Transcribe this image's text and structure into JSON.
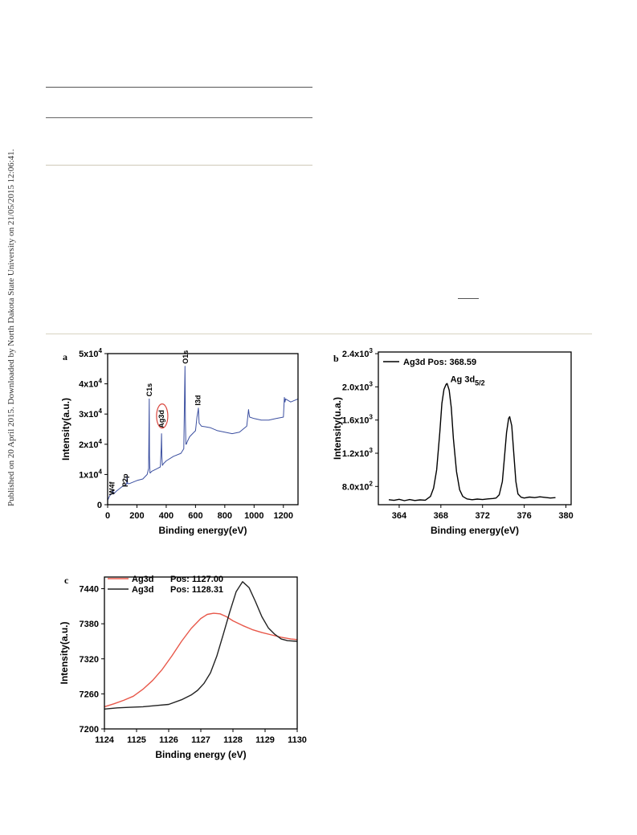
{
  "side_note": "Published on 20 April 2015. Downloaded by North Dakota State University on 21/05/2015 12:06:41.",
  "chart_data": [
    {
      "panel": "a",
      "type": "line",
      "xlabel": "Binding energy(eV)",
      "ylabel": "Intensity(a.u.)",
      "xlim": [
        0,
        1300
      ],
      "ylim": [
        0,
        50000
      ],
      "xticks": [
        0,
        200,
        400,
        600,
        800,
        1000,
        1200
      ],
      "xtick_labels": [
        "0",
        "200",
        "400",
        "600",
        "800",
        "1000",
        "1200"
      ],
      "yticks": [
        0,
        10000,
        20000,
        30000,
        40000,
        50000
      ],
      "ytick_labels": [
        {
          "base": "0",
          "exp": ""
        },
        {
          "base": "1x10",
          "exp": "4"
        },
        {
          "base": "2x10",
          "exp": "4"
        },
        {
          "base": "3x10",
          "exp": "4"
        },
        {
          "base": "4x10",
          "exp": "4"
        },
        {
          "base": "5x10",
          "exp": "4"
        }
      ],
      "series": [
        {
          "color": "#3b4fa0",
          "x": [
            0,
            15,
            30,
            35,
            40,
            60,
            100,
            130,
            133,
            136,
            150,
            200,
            240,
            270,
            280,
            284,
            286,
            289,
            292,
            300,
            340,
            360,
            366,
            368,
            370,
            374,
            380,
            400,
            450,
            500,
            520,
            528,
            531,
            534,
            537,
            545,
            560,
            580,
            600,
            610,
            617,
            620,
            625,
            640,
            700,
            750,
            800,
            850,
            900,
            950,
            962,
            966,
            970,
            1000,
            1050,
            1100,
            1150,
            1200,
            1207,
            1211,
            1215,
            1250,
            1300
          ],
          "y": [
            1500,
            3000,
            3800,
            5000,
            3500,
            4500,
            6000,
            6800,
            9500,
            7000,
            7000,
            8000,
            8500,
            10000,
            12000,
            35000,
            16000,
            10500,
            10500,
            11000,
            12000,
            12500,
            19000,
            23500,
            16000,
            13000,
            13500,
            14500,
            16000,
            17000,
            18500,
            45800,
            28000,
            20000,
            20000,
            21000,
            22500,
            23500,
            24500,
            29000,
            31000,
            32000,
            27000,
            26000,
            25500,
            24500,
            24000,
            23500,
            24000,
            26000,
            31500,
            30000,
            29000,
            28500,
            28000,
            28000,
            28500,
            29000,
            35500,
            34000,
            35000,
            34000,
            35000
          ]
        }
      ],
      "annotations": [
        "W4f",
        "P2p",
        "C1s",
        "Ag3d",
        "O1s",
        "I3d"
      ],
      "annotation_x": [
        30,
        120,
        285,
        367,
        531,
        617
      ]
    },
    {
      "panel": "b",
      "type": "line",
      "xlabel": "Binding energy(eV)",
      "ylabel": "Intensity(u.a.)",
      "xlim": [
        362,
        380.5
      ],
      "ylim": [
        580,
        2420
      ],
      "xticks": [
        364,
        368,
        372,
        376,
        380
      ],
      "xtick_labels": [
        "364",
        "368",
        "372",
        "376",
        "380"
      ],
      "yticks": [
        800,
        1200,
        1600,
        2000,
        2400
      ],
      "ytick_labels": [
        {
          "base": "8.0x10",
          "exp": "2"
        },
        {
          "base": "1.2x10",
          "exp": "3"
        },
        {
          "base": "1.6x10",
          "exp": "3"
        },
        {
          "base": "2.0x10",
          "exp": "3"
        },
        {
          "base": "2.4x10",
          "exp": "3"
        }
      ],
      "legend": "Ag3d Pos: 368.59",
      "peak_label": {
        "main": "Ag 3d",
        "sub": "5/2"
      },
      "series": [
        {
          "color": "#000000",
          "x": [
            363.0,
            363.5,
            364.0,
            364.5,
            365.0,
            365.5,
            366.0,
            366.5,
            367.0,
            367.3,
            367.6,
            367.9,
            368.1,
            368.3,
            368.5,
            368.6,
            368.8,
            369.0,
            369.2,
            369.5,
            369.8,
            370.1,
            370.5,
            371.0,
            371.5,
            372.0,
            372.5,
            373.0,
            373.3,
            373.6,
            373.9,
            374.1,
            374.3,
            374.5,
            374.6,
            374.8,
            375.0,
            375.2,
            375.4,
            375.7,
            376.0,
            376.5,
            377.0,
            377.5,
            378.0,
            378.5,
            379.0
          ],
          "y": [
            640,
            632,
            645,
            628,
            642,
            630,
            638,
            634,
            680,
            780,
            1000,
            1450,
            1800,
            1970,
            2030,
            2040,
            1960,
            1750,
            1380,
            980,
            760,
            680,
            650,
            640,
            648,
            642,
            650,
            655,
            660,
            700,
            860,
            1150,
            1450,
            1620,
            1640,
            1530,
            1200,
            860,
            710,
            670,
            660,
            672,
            665,
            675,
            668,
            660,
            665
          ]
        }
      ]
    },
    {
      "panel": "c",
      "type": "line",
      "xlabel": "Binding energy (eV)",
      "ylabel": "Intensity(a.u.)",
      "xlim": [
        1124,
        1130
      ],
      "ylim": [
        7200,
        7460
      ],
      "xticks": [
        1124,
        1125,
        1126,
        1127,
        1128,
        1129,
        1130
      ],
      "xtick_labels": [
        "1124",
        "1125",
        "1126",
        "1127",
        "1128",
        "1129",
        "1130"
      ],
      "yticks": [
        7200,
        7260,
        7320,
        7380,
        7440
      ],
      "ytick_labels": [
        {
          "base": "7200",
          "exp": ""
        },
        {
          "base": "7260",
          "exp": ""
        },
        {
          "base": "7320",
          "exp": ""
        },
        {
          "base": "7380",
          "exp": ""
        },
        {
          "base": "7440",
          "exp": ""
        }
      ],
      "series": [
        {
          "name": "Ag3d",
          "legend_pos": "Pos: 1127.00",
          "color": "#e8584a",
          "x": [
            1124.0,
            1124.3,
            1124.6,
            1124.9,
            1125.2,
            1125.5,
            1125.8,
            1126.1,
            1126.4,
            1126.7,
            1127.0,
            1127.2,
            1127.4,
            1127.6,
            1127.8,
            1128.0,
            1128.3,
            1128.6,
            1128.9,
            1129.2,
            1129.5,
            1129.8,
            1130.0
          ],
          "y": [
            7238,
            7243,
            7249,
            7256,
            7268,
            7283,
            7302,
            7325,
            7350,
            7372,
            7389,
            7396,
            7398,
            7397,
            7392,
            7385,
            7377,
            7370,
            7365,
            7361,
            7357,
            7354,
            7353
          ]
        },
        {
          "name": "Ag3d",
          "legend_pos": "Pos: 1128.31",
          "color": "#222222",
          "x": [
            1124.0,
            1124.4,
            1124.8,
            1125.2,
            1125.6,
            1126.0,
            1126.4,
            1126.7,
            1126.9,
            1127.1,
            1127.3,
            1127.5,
            1127.7,
            1127.9,
            1128.1,
            1128.3,
            1128.5,
            1128.7,
            1128.9,
            1129.1,
            1129.3,
            1129.5,
            1129.7,
            1130.0
          ],
          "y": [
            7234,
            7236,
            7237,
            7238,
            7240,
            7242,
            7250,
            7258,
            7266,
            7278,
            7296,
            7325,
            7362,
            7400,
            7435,
            7452,
            7442,
            7418,
            7392,
            7373,
            7362,
            7354,
            7351,
            7350
          ]
        }
      ]
    }
  ]
}
